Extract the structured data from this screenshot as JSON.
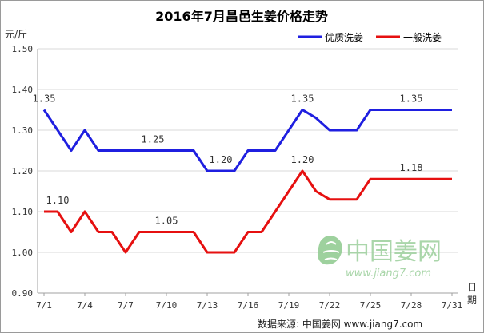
{
  "chart_data": {
    "type": "line",
    "title": "2016年7月昌邑生姜价格走势",
    "ylabel": "元/斤",
    "xlabel": "日期",
    "ylim": [
      0.9,
      1.5
    ],
    "yticks": [
      "0.90",
      "1.00",
      "1.10",
      "1.20",
      "1.30",
      "1.40",
      "1.50"
    ],
    "x": [
      "7/1",
      "7/2",
      "7/3",
      "7/4",
      "7/5",
      "7/6",
      "7/7",
      "7/8",
      "7/9",
      "7/10",
      "7/11",
      "7/12",
      "7/13",
      "7/14",
      "7/15",
      "7/16",
      "7/17",
      "7/18",
      "7/19",
      "7/20",
      "7/21",
      "7/22",
      "7/23",
      "7/24",
      "7/25",
      "7/26",
      "7/27",
      "7/28",
      "7/29",
      "7/30",
      "7/31"
    ],
    "xtick_labels": [
      "7/1",
      "7/4",
      "7/7",
      "7/10",
      "7/13",
      "7/16",
      "7/19",
      "7/22",
      "7/25",
      "7/28",
      "7/31"
    ],
    "grid": "horizontal",
    "legend_position": "top-right",
    "series": [
      {
        "name": "优质洗姜",
        "color": "#1f1fe0",
        "values": [
          1.35,
          1.3,
          1.25,
          1.3,
          1.25,
          1.25,
          1.25,
          1.25,
          1.25,
          1.25,
          1.25,
          1.25,
          1.2,
          1.2,
          1.2,
          1.25,
          1.25,
          1.25,
          1.3,
          1.35,
          1.33,
          1.3,
          1.3,
          1.3,
          1.35,
          1.35,
          1.35,
          1.35,
          1.35,
          1.35,
          1.35
        ]
      },
      {
        "name": "一般洗姜",
        "color": "#e61010",
        "values": [
          1.1,
          1.1,
          1.05,
          1.1,
          1.05,
          1.05,
          1.0,
          1.05,
          1.05,
          1.05,
          1.05,
          1.05,
          1.0,
          1.0,
          1.0,
          1.05,
          1.05,
          1.1,
          1.15,
          1.2,
          1.15,
          1.13,
          1.13,
          1.13,
          1.18,
          1.18,
          1.18,
          1.18,
          1.18,
          1.18,
          1.18
        ]
      }
    ],
    "annotations": [
      {
        "text": "1.35",
        "x": "7/1",
        "y": 1.35,
        "series": 0
      },
      {
        "text": "1.25",
        "x": "7/9",
        "y": 1.25,
        "series": 0
      },
      {
        "text": "1.20",
        "x": "7/14",
        "y": 1.2,
        "series": 0
      },
      {
        "text": "1.35",
        "x": "7/20",
        "y": 1.35,
        "series": 0
      },
      {
        "text": "1.35",
        "x": "7/28",
        "y": 1.35,
        "series": 0
      },
      {
        "text": "1.10",
        "x": "7/2",
        "y": 1.1,
        "series": 1
      },
      {
        "text": "1.05",
        "x": "7/10",
        "y": 1.05,
        "series": 1
      },
      {
        "text": "1.20",
        "x": "7/20",
        "y": 1.2,
        "series": 1
      },
      {
        "text": "1.18",
        "x": "7/28",
        "y": 1.18,
        "series": 1
      }
    ]
  },
  "watermark": {
    "brand": "中国姜网",
    "url": "www.jiang7.com"
  },
  "source": "数据来源:  中国姜网  www.jiang7.com",
  "colors": {
    "grid": "#d9d9d9",
    "axis": "#a0a0a0"
  }
}
